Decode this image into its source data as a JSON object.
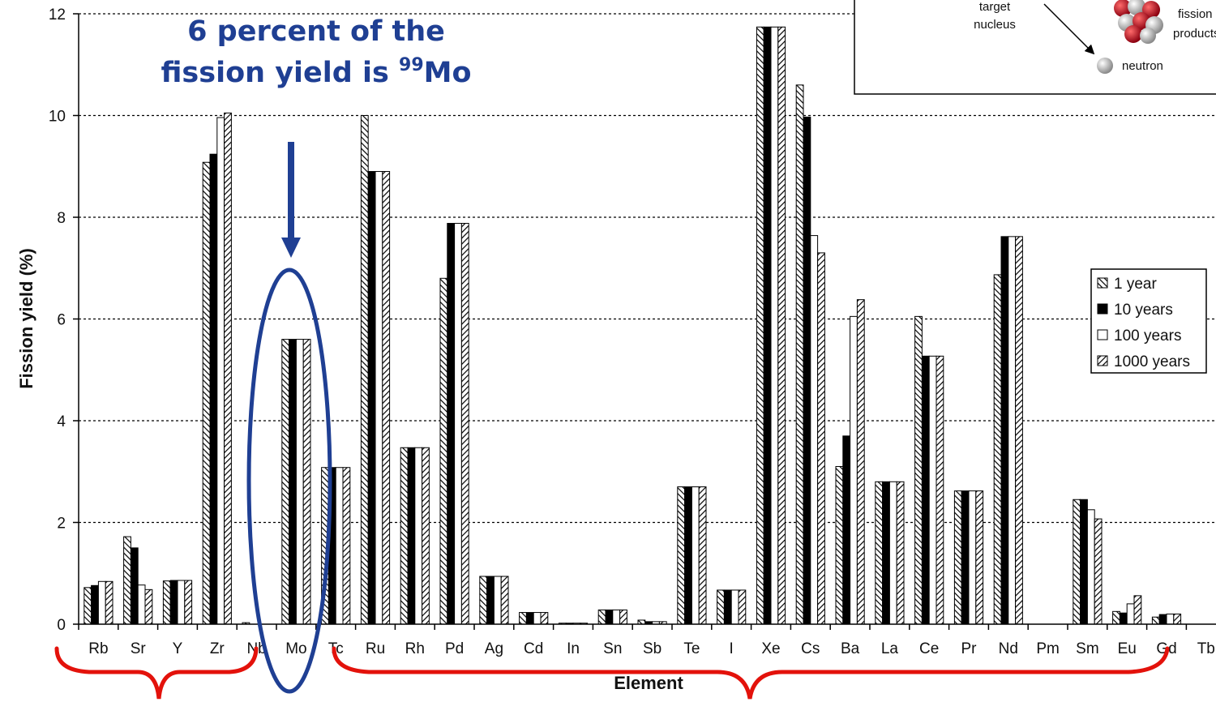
{
  "callout": {
    "line1": "6 percent of the",
    "line2_prefix": "fission yield is ",
    "line2_sup": "99",
    "line2_suffix": "Mo"
  },
  "inset": {
    "target_label_1": "target",
    "target_label_2": "nucleus",
    "fission_label_1": "fission",
    "fission_label_2": "products",
    "neutron_label": "neutron"
  },
  "colors": {
    "callout": "#1f3f93",
    "bracket": "#e3120b",
    "ellipse": "#1f3f93"
  },
  "chart_data": {
    "type": "bar",
    "xlabel": "Element",
    "ylabel": "Fission yield (%)",
    "ylim": [
      0,
      12
    ],
    "yticks": [
      0,
      2,
      4,
      6,
      8,
      10,
      12
    ],
    "grid": "horizontal dashed",
    "legend_position": "right",
    "categories": [
      "Rb",
      "Sr",
      "Y",
      "Zr",
      "Nb",
      "Mo",
      "Tc",
      "Ru",
      "Rh",
      "Pd",
      "Ag",
      "Cd",
      "In",
      "Sn",
      "Sb",
      "Te",
      "I",
      "Xe",
      "Cs",
      "Ba",
      "La",
      "Ce",
      "Pr",
      "Nd",
      "Pm",
      "Sm",
      "Eu",
      "Gd",
      "Tb"
    ],
    "series": [
      {
        "name": "1 year",
        "values": [
          0.72,
          1.72,
          0.85,
          9.08,
          0.03,
          5.6,
          3.08,
          10.0,
          3.47,
          6.8,
          0.94,
          0.23,
          0.02,
          0.28,
          0.08,
          2.7,
          0.67,
          11.74,
          10.6,
          3.1,
          2.8,
          6.05,
          2.62,
          6.87,
          0,
          2.45,
          0.25,
          0.14,
          0
        ]
      },
      {
        "name": "10 years",
        "values": [
          0.76,
          1.5,
          0.86,
          9.24,
          0,
          5.6,
          3.08,
          8.9,
          3.47,
          7.88,
          0.94,
          0.23,
          0.02,
          0.28,
          0.05,
          2.7,
          0.67,
          11.74,
          9.97,
          3.7,
          2.8,
          5.27,
          2.62,
          7.62,
          0,
          2.45,
          0.22,
          0.19,
          0
        ]
      },
      {
        "name": "100 years",
        "values": [
          0.84,
          0.77,
          0.86,
          9.96,
          0,
          5.6,
          3.08,
          8.9,
          3.47,
          7.88,
          0.94,
          0.23,
          0.02,
          0.28,
          0.05,
          2.7,
          0.67,
          11.74,
          7.64,
          6.05,
          2.8,
          5.27,
          2.62,
          7.62,
          0,
          2.25,
          0.4,
          0.2,
          0
        ]
      },
      {
        "name": "1000 years",
        "values": [
          0.84,
          0.68,
          0.86,
          10.05,
          0,
          5.6,
          3.08,
          8.9,
          3.47,
          7.88,
          0.94,
          0.23,
          0.02,
          0.28,
          0.05,
          2.7,
          0.67,
          11.74,
          7.3,
          6.38,
          2.8,
          5.27,
          2.62,
          7.62,
          0,
          2.07,
          0.56,
          0.2,
          0
        ]
      }
    ]
  }
}
